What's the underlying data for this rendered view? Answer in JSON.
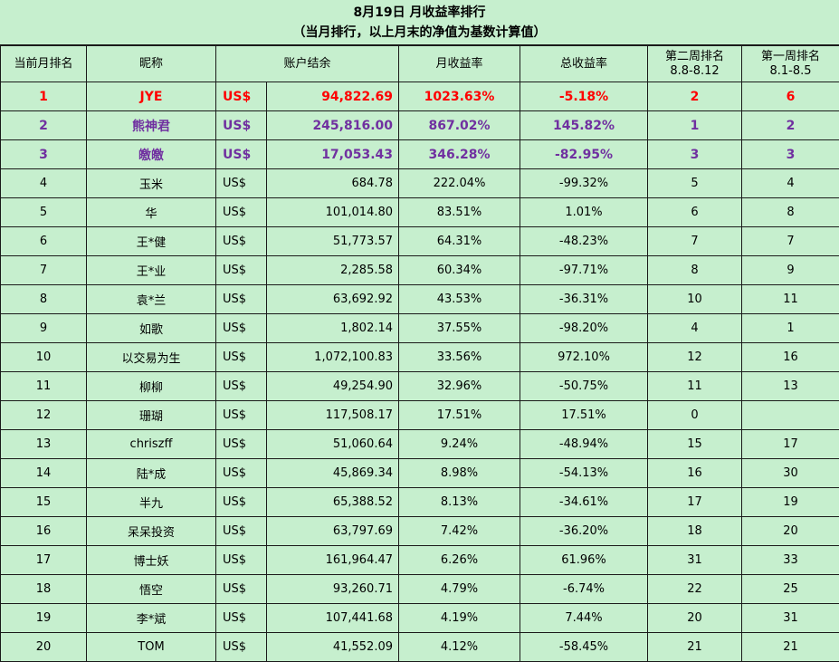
{
  "title": "8月19日 月收益率排行",
  "subtitle": "（当月排行，以上月末的净值为基数计算值）",
  "columns": {
    "rank": "当前月排名",
    "nick": "昵称",
    "balance": "账户结余",
    "monthly": "月收益率",
    "total": "总收益率",
    "week2_line1": "第二周排名",
    "week2_line2": "8.8-8.12",
    "week1_line1": "第一周排名",
    "week1_line2": "8.1-8.5"
  },
  "currency": "US$",
  "highlight_colors": {
    "first": "#ff0000",
    "top3": "#7030a0",
    "background": "#c6efce"
  },
  "rows": [
    {
      "rank": "1",
      "nick": "JYE",
      "balance": "94,822.69",
      "monthly": "1023.63%",
      "total": "-5.18%",
      "week2": "2",
      "week1": "6"
    },
    {
      "rank": "2",
      "nick": "熊神君",
      "balance": "245,816.00",
      "monthly": "867.02%",
      "total": "145.82%",
      "week2": "1",
      "week1": "2"
    },
    {
      "rank": "3",
      "nick": "皦皦",
      "balance": "17,053.43",
      "monthly": "346.28%",
      "total": "-82.95%",
      "week2": "3",
      "week1": "3"
    },
    {
      "rank": "4",
      "nick": "玉米",
      "balance": "684.78",
      "monthly": "222.04%",
      "total": "-99.32%",
      "week2": "5",
      "week1": "4"
    },
    {
      "rank": "5",
      "nick": "华",
      "balance": "101,014.80",
      "monthly": "83.51%",
      "total": "1.01%",
      "week2": "6",
      "week1": "8"
    },
    {
      "rank": "6",
      "nick": "王*健",
      "balance": "51,773.57",
      "monthly": "64.31%",
      "total": "-48.23%",
      "week2": "7",
      "week1": "7"
    },
    {
      "rank": "7",
      "nick": "王*业",
      "balance": "2,285.58",
      "monthly": "60.34%",
      "total": "-97.71%",
      "week2": "8",
      "week1": "9"
    },
    {
      "rank": "8",
      "nick": "袁*兰",
      "balance": "63,692.92",
      "monthly": "43.53%",
      "total": "-36.31%",
      "week2": "10",
      "week1": "11"
    },
    {
      "rank": "9",
      "nick": "如歌",
      "balance": "1,802.14",
      "monthly": "37.55%",
      "total": "-98.20%",
      "week2": "4",
      "week1": "1"
    },
    {
      "rank": "10",
      "nick": "以交易为生",
      "balance": "1,072,100.83",
      "monthly": "33.56%",
      "total": "972.10%",
      "week2": "12",
      "week1": "16"
    },
    {
      "rank": "11",
      "nick": "柳柳",
      "balance": "49,254.90",
      "monthly": "32.96%",
      "total": "-50.75%",
      "week2": "11",
      "week1": "13"
    },
    {
      "rank": "12",
      "nick": "珊瑚",
      "balance": "117,508.17",
      "monthly": "17.51%",
      "total": "17.51%",
      "week2": "0",
      "week1": ""
    },
    {
      "rank": "13",
      "nick": "chriszff",
      "balance": "51,060.64",
      "monthly": "9.24%",
      "total": "-48.94%",
      "week2": "15",
      "week1": "17"
    },
    {
      "rank": "14",
      "nick": "陆*成",
      "balance": "45,869.34",
      "monthly": "8.98%",
      "total": "-54.13%",
      "week2": "16",
      "week1": "30"
    },
    {
      "rank": "15",
      "nick": "半九",
      "balance": "65,388.52",
      "monthly": "8.13%",
      "total": "-34.61%",
      "week2": "17",
      "week1": "19"
    },
    {
      "rank": "16",
      "nick": "呆呆投资",
      "balance": "63,797.69",
      "monthly": "7.42%",
      "total": "-36.20%",
      "week2": "18",
      "week1": "20"
    },
    {
      "rank": "17",
      "nick": "博士妖",
      "balance": "161,964.47",
      "monthly": "6.26%",
      "total": "61.96%",
      "week2": "31",
      "week1": "33"
    },
    {
      "rank": "18",
      "nick": "悟空",
      "balance": "93,260.71",
      "monthly": "4.79%",
      "total": "-6.74%",
      "week2": "22",
      "week1": "25"
    },
    {
      "rank": "19",
      "nick": "李*斌",
      "balance": "107,441.68",
      "monthly": "4.19%",
      "total": "7.44%",
      "week2": "20",
      "week1": "31"
    },
    {
      "rank": "20",
      "nick": "TOM",
      "balance": "41,552.09",
      "monthly": "4.12%",
      "total": "-58.45%",
      "week2": "21",
      "week1": "21"
    }
  ]
}
